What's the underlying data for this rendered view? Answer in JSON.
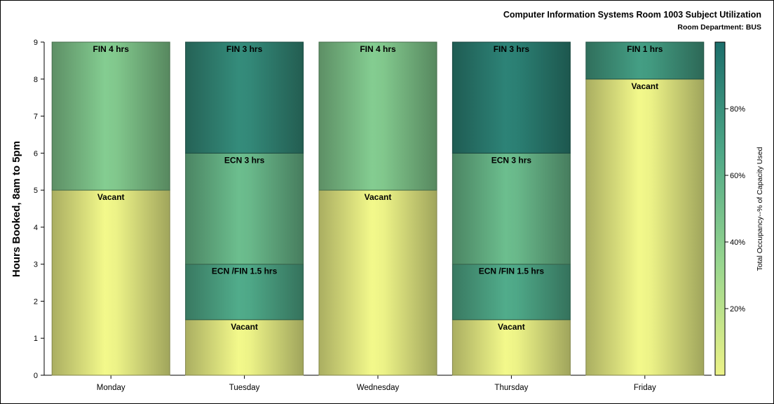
{
  "chart_data": {
    "type": "bar",
    "stacked": true,
    "title": "Computer Information Systems Room 1003 Subject Utilization",
    "subtitle": "Room Department: BUS",
    "xlabel": "",
    "ylabel": "Hours Booked, 8am to 5pm",
    "ylim": [
      0,
      9
    ],
    "yticks": [
      0,
      1,
      2,
      3,
      4,
      5,
      6,
      7,
      8,
      9
    ],
    "grid": false,
    "categories": [
      "Monday",
      "Tuesday",
      "Wednesday",
      "Thursday",
      "Friday"
    ],
    "stacks": [
      {
        "category": "Monday",
        "segments": [
          {
            "label": "Vacant",
            "value": 5,
            "occupancy": 0
          },
          {
            "label": "FIN 4 hrs",
            "value": 4,
            "occupancy": 44
          }
        ]
      },
      {
        "category": "Tuesday",
        "segments": [
          {
            "label": "Vacant",
            "value": 1.5,
            "occupancy": 0
          },
          {
            "label": "ECN /FIN 1.5 hrs",
            "value": 1.5,
            "occupancy": 67
          },
          {
            "label": "ECN 3 hrs",
            "value": 3,
            "occupancy": 55
          },
          {
            "label": "FIN 3 hrs",
            "value": 3,
            "occupancy": 85
          }
        ]
      },
      {
        "category": "Wednesday",
        "segments": [
          {
            "label": "Vacant",
            "value": 5,
            "occupancy": 0
          },
          {
            "label": "FIN 4 hrs",
            "value": 4,
            "occupancy": 44
          }
        ]
      },
      {
        "category": "Thursday",
        "segments": [
          {
            "label": "Vacant",
            "value": 1.5,
            "occupancy": 0
          },
          {
            "label": "ECN /FIN 1.5 hrs",
            "value": 1.5,
            "occupancy": 67
          },
          {
            "label": "ECN 3 hrs",
            "value": 3,
            "occupancy": 55
          },
          {
            "label": "FIN 3 hrs",
            "value": 3,
            "occupancy": 90
          }
        ]
      },
      {
        "category": "Friday",
        "segments": [
          {
            "label": "Vacant",
            "value": 8,
            "occupancy": 0
          },
          {
            "label": "FIN 1 hrs",
            "value": 1,
            "occupancy": 75
          }
        ]
      }
    ],
    "colorbar": {
      "label": "Total Occupancy--% of Capacity Used",
      "range": [
        0,
        100
      ],
      "ticks": [
        20,
        40,
        60,
        80
      ],
      "tick_labels": [
        "20%",
        "40%",
        "60%",
        "80%"
      ],
      "colors": [
        "#ecf287",
        "#98d68f",
        "#4fa887",
        "#1c6e6b"
      ]
    }
  }
}
